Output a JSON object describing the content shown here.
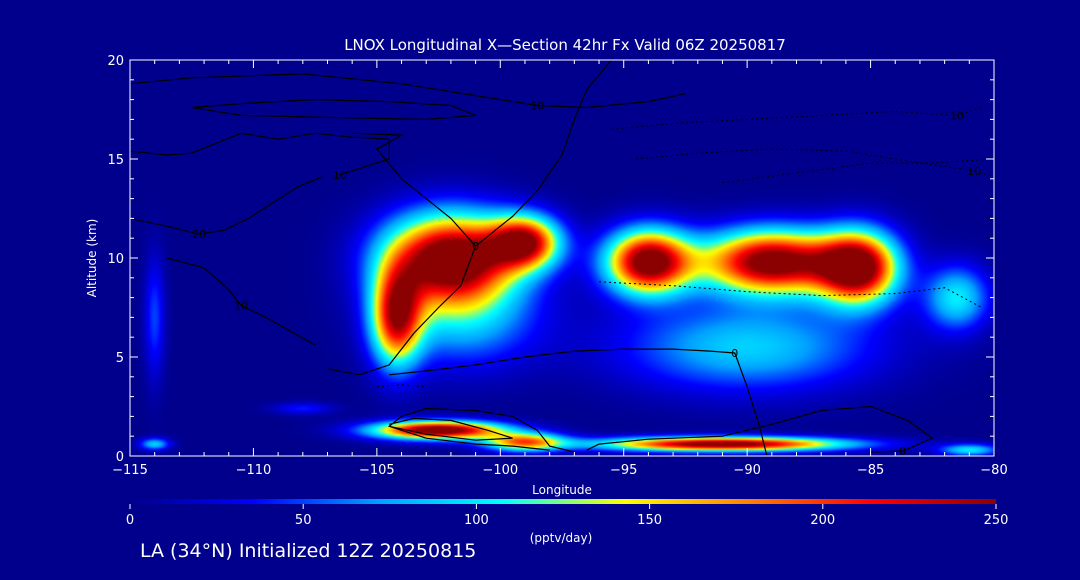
{
  "chart_data": {
    "type": "heatmap",
    "title": "LNOX Longitudinal X—Section 42hr  Fx Valid 06Z 20250817",
    "xlabel": "Longitude",
    "ylabel": "Altitude (km)",
    "xlim": [
      -115,
      -80
    ],
    "ylim": [
      0,
      20
    ],
    "x_ticks": [
      -115,
      -110,
      -105,
      -100,
      -95,
      -90,
      -85,
      -80
    ],
    "x_tick_labels": [
      "−115",
      "−110",
      "−105",
      "−100",
      "−95",
      "−90",
      "−85",
      "−80"
    ],
    "y_ticks": [
      0,
      5,
      10,
      15,
      20
    ],
    "colorbar": {
      "range": [
        0,
        250
      ],
      "ticks": [
        0,
        50,
        100,
        150,
        200,
        250
      ],
      "label": "(pptv/day)",
      "colors": [
        "#00008c",
        "#0000ff",
        "#00a0ff",
        "#00ffff",
        "#ffff00",
        "#ff8000",
        "#ff0000",
        "#8b0000"
      ]
    },
    "blobs": [
      {
        "lon": -102.0,
        "alt": 10.0,
        "sx": 2.6,
        "sy": 2.2,
        "v": 280
      },
      {
        "lon": -104.2,
        "alt": 7.0,
        "sx": 1.0,
        "sy": 2.4,
        "v": 210
      },
      {
        "lon": -99.0,
        "alt": 10.8,
        "sx": 1.4,
        "sy": 1.3,
        "v": 220
      },
      {
        "lon": -101.5,
        "alt": 7.0,
        "sx": 3.0,
        "sy": 2.5,
        "v": 80
      },
      {
        "lon": -94.0,
        "alt": 9.8,
        "sx": 1.7,
        "sy": 1.6,
        "v": 270
      },
      {
        "lon": -89.0,
        "alt": 9.8,
        "sx": 2.8,
        "sy": 1.6,
        "v": 270
      },
      {
        "lon": -85.5,
        "alt": 9.5,
        "sx": 1.6,
        "sy": 1.8,
        "v": 260
      },
      {
        "lon": -90.0,
        "alt": 5.5,
        "sx": 5.0,
        "sy": 2.2,
        "v": 90
      },
      {
        "lon": -102.5,
        "alt": 1.3,
        "sx": 2.6,
        "sy": 0.45,
        "v": 280
      },
      {
        "lon": -99.0,
        "alt": 0.7,
        "sx": 1.6,
        "sy": 0.45,
        "v": 180
      },
      {
        "lon": -91.0,
        "alt": 0.6,
        "sx": 4.8,
        "sy": 0.35,
        "v": 270
      },
      {
        "lon": -81.5,
        "alt": 8.0,
        "sx": 1.3,
        "sy": 1.6,
        "v": 100
      },
      {
        "lon": -114.0,
        "alt": 7.0,
        "sx": 0.4,
        "sy": 3.0,
        "v": 50
      },
      {
        "lon": -114.0,
        "alt": 0.6,
        "sx": 0.6,
        "sy": 0.3,
        "v": 90
      },
      {
        "lon": -108.0,
        "alt": 2.4,
        "sx": 1.2,
        "sy": 0.3,
        "v": 40
      },
      {
        "lon": -81.0,
        "alt": 0.3,
        "sx": 1.2,
        "sy": 0.3,
        "v": 100
      }
    ],
    "contours": [
      {
        "style": "solid",
        "label": "0",
        "label_at": [
          -90.5,
          5.2
        ],
        "points": [
          [
            -104.5,
            4.1
          ],
          [
            -103,
            4.3
          ],
          [
            -101,
            4.6
          ],
          [
            -99,
            5.0
          ],
          [
            -97,
            5.3
          ],
          [
            -95,
            5.4
          ],
          [
            -93,
            5.4
          ],
          [
            -91.5,
            5.3
          ],
          [
            -90.5,
            5.2
          ],
          [
            -90,
            3.5
          ],
          [
            -89.5,
            1.5
          ],
          [
            -89.2,
            0
          ]
        ]
      },
      {
        "style": "solid",
        "label": "0",
        "label_at": [
          -83.7,
          0.25
        ],
        "points": [
          [
            -96.5,
            0.3
          ],
          [
            -96,
            0.6
          ],
          [
            -94,
            0.85
          ],
          [
            -91,
            1.0
          ],
          [
            -89,
            1.6
          ],
          [
            -87,
            2.3
          ],
          [
            -85,
            2.5
          ],
          [
            -83.5,
            1.8
          ],
          [
            -82.5,
            0.9
          ],
          [
            -83.7,
            0.25
          ],
          [
            -85,
            0.2
          ]
        ]
      },
      {
        "style": "solid",
        "label": "",
        "label_at": null,
        "points": [
          [
            -97,
            0.2
          ],
          [
            -98,
            0.5
          ],
          [
            -98.5,
            1.3
          ],
          [
            -99.5,
            2.0
          ],
          [
            -101,
            2.3
          ],
          [
            -103,
            2.4
          ],
          [
            -104,
            2.0
          ],
          [
            -104.5,
            1.5
          ],
          [
            -103,
            0.9
          ],
          [
            -101,
            0.6
          ],
          [
            -99.5,
            0.5
          ],
          [
            -98,
            0.3
          ]
        ]
      },
      {
        "style": "solid",
        "label": "",
        "label_at": null,
        "points": [
          [
            -104.5,
            1.6
          ],
          [
            -103.5,
            1.9
          ],
          [
            -102,
            1.8
          ],
          [
            -100.5,
            1.3
          ],
          [
            -99.5,
            0.9
          ],
          [
            -101,
            0.8
          ],
          [
            -103,
            1.1
          ],
          [
            -104.5,
            1.5
          ]
        ]
      },
      {
        "style": "solid",
        "label": "0",
        "label_at": [
          -101,
          10.6
        ],
        "points": [
          [
            -107,
            4.4
          ],
          [
            -105.7,
            4.1
          ],
          [
            -104.5,
            4.6
          ],
          [
            -103.5,
            6.2
          ],
          [
            -102.5,
            7.5
          ],
          [
            -101.6,
            8.6
          ],
          [
            -101,
            10.6
          ],
          [
            -99.5,
            12.1
          ],
          [
            -98.5,
            13.4
          ],
          [
            -97.5,
            15.2
          ],
          [
            -97,
            17.0
          ],
          [
            -96.5,
            18.5
          ],
          [
            -95.5,
            20
          ]
        ]
      },
      {
        "style": "solid",
        "label": "10",
        "label_at": [
          -110.5,
          7.6
        ],
        "points": [
          [
            -113.5,
            10.0
          ],
          [
            -112,
            9.5
          ],
          [
            -111,
            8.4
          ],
          [
            -110.5,
            7.6
          ],
          [
            -109.5,
            7.0
          ],
          [
            -108.5,
            6.3
          ],
          [
            -107.5,
            5.6
          ]
        ]
      },
      {
        "style": "solid",
        "label": "20",
        "label_at": [
          -112.2,
          11.2
        ],
        "points": [
          [
            -115,
            12.0
          ],
          [
            -113.5,
            11.6
          ],
          [
            -112.2,
            11.2
          ],
          [
            -111.2,
            11.4
          ],
          [
            -110.2,
            12.0
          ],
          [
            -109.2,
            12.8
          ],
          [
            -108.2,
            13.6
          ],
          [
            -107.2,
            14.1
          ]
        ]
      },
      {
        "style": "solid",
        "label": "10",
        "label_at": [
          -106.5,
          14.2
        ],
        "points": [
          [
            -106.5,
            14.2
          ],
          [
            -105.5,
            14.6
          ],
          [
            -104.5,
            15.0
          ],
          [
            -104.5,
            16.0
          ],
          [
            -106,
            16.1
          ],
          [
            -107.5,
            16.3
          ],
          [
            -109,
            16.0
          ],
          [
            -110.5,
            16.3
          ],
          [
            -111.5,
            15.8
          ],
          [
            -112.5,
            15.3
          ],
          [
            -113.5,
            15.2
          ],
          [
            -115,
            15.4
          ]
        ]
      },
      {
        "style": "solid",
        "label": "10",
        "label_at": [
          -98.5,
          17.7
        ],
        "points": [
          [
            -115,
            18.8
          ],
          [
            -112.5,
            19.1
          ],
          [
            -108,
            19.3
          ],
          [
            -104,
            18.8
          ],
          [
            -101,
            18.2
          ],
          [
            -98.5,
            17.7
          ],
          [
            -96.5,
            17.6
          ],
          [
            -94,
            17.9
          ],
          [
            -92.5,
            18.3
          ]
        ]
      },
      {
        "style": "solid",
        "label": "",
        "label_at": null,
        "points": [
          [
            -107.5,
            18.0
          ],
          [
            -110.5,
            17.8
          ],
          [
            -112.5,
            17.6
          ],
          [
            -110.5,
            17.2
          ],
          [
            -107,
            17.1
          ],
          [
            -103,
            17.0
          ],
          [
            -101,
            17.2
          ],
          [
            -102,
            17.7
          ],
          [
            -104.5,
            17.9
          ],
          [
            -107.5,
            18.0
          ]
        ]
      },
      {
        "style": "solid",
        "label": "",
        "label_at": null,
        "points": [
          [
            -101,
            10.6
          ],
          [
            -102,
            12.0
          ],
          [
            -104,
            14.0
          ],
          [
            -105,
            15.5
          ],
          [
            -104,
            16.2
          ],
          [
            -106,
            16.3
          ]
        ]
      },
      {
        "style": "dotted",
        "label": "10",
        "label_at": [
          -81.5,
          17.2
        ],
        "points": [
          [
            -95.5,
            16.5
          ],
          [
            -93,
            16.8
          ],
          [
            -90,
            17.0
          ],
          [
            -87,
            17.2
          ],
          [
            -84,
            17.4
          ],
          [
            -81.5,
            17.2
          ],
          [
            -80.5,
            17.6
          ]
        ]
      },
      {
        "style": "dotted",
        "label": "10",
        "label_at": [
          -80.8,
          14.4
        ],
        "points": [
          [
            -94.5,
            15.0
          ],
          [
            -92,
            15.3
          ],
          [
            -89,
            15.5
          ],
          [
            -86,
            15.4
          ],
          [
            -83.5,
            14.9
          ],
          [
            -80.8,
            14.4
          ],
          [
            -80,
            14.1
          ]
        ]
      },
      {
        "style": "dotted",
        "label": "",
        "label_at": null,
        "points": [
          [
            -96,
            8.8
          ],
          [
            -93,
            8.6
          ],
          [
            -90,
            8.3
          ],
          [
            -87,
            8.1
          ],
          [
            -84,
            8.2
          ],
          [
            -82,
            8.5
          ],
          [
            -80.5,
            7.5
          ]
        ]
      },
      {
        "style": "dotted",
        "label": "",
        "label_at": null,
        "points": [
          [
            -91,
            13.8
          ],
          [
            -88,
            14.3
          ],
          [
            -85,
            14.8
          ],
          [
            -82.5,
            14.8
          ],
          [
            -80,
            15.0
          ]
        ]
      },
      {
        "style": "dotted",
        "label": "",
        "label_at": null,
        "points": [
          [
            -105,
            3.5
          ],
          [
            -104,
            3.6
          ],
          [
            -103,
            3.5
          ]
        ]
      }
    ]
  },
  "footer_text": "LA (34°N) Initialized 12Z 20250815"
}
